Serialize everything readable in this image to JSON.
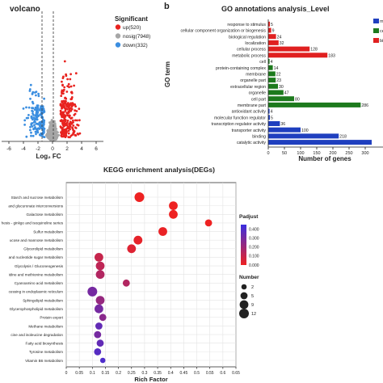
{
  "chart_data": [
    {
      "type": "scatter",
      "title": "volcano",
      "xlabel": "Log₂ FC",
      "ylabel": "",
      "xlim": [
        -7,
        7
      ],
      "x_ticks": [
        "-6",
        "-4",
        "-2",
        "0",
        "2",
        "4",
        "6"
      ],
      "thresholds": [
        -1,
        1
      ],
      "legend_title": "Significant",
      "legend_placement": "right",
      "series": [
        {
          "name": "up(520)",
          "color": "#e8231f"
        },
        {
          "name": "nosig(7948)",
          "color": "#a6a6a6"
        },
        {
          "name": "down(332)",
          "color": "#3b8ee0"
        }
      ]
    },
    {
      "type": "bar",
      "orientation": "horizontal",
      "panel_label": "b",
      "title": "GO annotations analysis_Level",
      "ylabel": "GO term",
      "xlabel": "Number of genes",
      "xlim": [
        0,
        320
      ],
      "x_ticks": [
        "0",
        "50",
        "100",
        "150",
        "200",
        "250",
        "300"
      ],
      "legend_placement": "right",
      "legend_entries": [
        {
          "label": "m",
          "color": "#1f3fbf"
        },
        {
          "label": "ce",
          "color": "#1d7a1d"
        },
        {
          "label": "bi",
          "color": "#e02020"
        }
      ],
      "categories": [
        "response to stimulus",
        "cellular component organization or biogenesis",
        "biological regulation",
        "localization",
        "cellular process",
        "metabolic process",
        "cell",
        "protein-containing complex",
        "membrane",
        "organelle part",
        "extracellular region",
        "organelle",
        "cell part",
        "membrane part",
        "antioxidant activity",
        "molecular function regulator",
        "transcription regulator activity",
        "transporter activity",
        "binding",
        "catalytic activity"
      ],
      "values": [
        5,
        9,
        24,
        32,
        128,
        183,
        4,
        14,
        22,
        23,
        30,
        47,
        80,
        286,
        4,
        5,
        36,
        100,
        218,
        320
      ],
      "value_labels": [
        "5",
        "9",
        "24",
        "32",
        "128",
        "183",
        "4",
        "14",
        "22",
        "23",
        "30",
        "47",
        "80",
        "286",
        "4",
        "5",
        "36",
        "100",
        "218",
        ""
      ],
      "colors": [
        "#e02020",
        "#e02020",
        "#e02020",
        "#e02020",
        "#e02020",
        "#e02020",
        "#1d7a1d",
        "#1d7a1d",
        "#1d7a1d",
        "#1d7a1d",
        "#1d7a1d",
        "#1d7a1d",
        "#1d7a1d",
        "#1d7a1d",
        "#1f3fbf",
        "#1f3fbf",
        "#1f3fbf",
        "#1f3fbf",
        "#1f3fbf",
        "#1f3fbf"
      ]
    },
    {
      "type": "scatter",
      "title": "KEGG enrichment analysis(DEGs)",
      "xlabel": "Rich Factor",
      "ylabel": "",
      "xlim": [
        0,
        0.65
      ],
      "x_ticks": [
        "0",
        "0.05",
        "0.1",
        "0.15",
        "0.2",
        "0.25",
        "0.3",
        "0.35",
        "0.4",
        "0.45",
        "0.5",
        "0.55",
        "0.6",
        "0.65"
      ],
      "grid": true,
      "categories": [
        "Starch and sucrose metabolism",
        "and glucuronate interconversions",
        "Galactose metabolism",
        "hesis - ginkgo and isoquinoline series",
        "Sulfur metabolism",
        "ucose and mannose metabolism",
        "Glycerolipid metabolism",
        "and nucleotide sugar metabolism",
        "Glycolysis / Gluconeogenesis",
        "idine and methionine metabolism",
        "Cyanoamino acid metabolism",
        "cessing in endoplasmic reticulum",
        "Sphingolipid metabolism",
        "Glycerophospholipid metabolism",
        "Protein export",
        "Methane metabolism",
        "cine and isoleucine degradation",
        "Fatty acid biosynthesis",
        "Tyrosine metabolism",
        "Vitamin B6 metabolism"
      ],
      "points": [
        {
          "x": 0.28,
          "size": 12,
          "padjust": 0.0
        },
        {
          "x": 0.41,
          "size": 9,
          "padjust": 0.0
        },
        {
          "x": 0.41,
          "size": 9,
          "padjust": 0.0
        },
        {
          "x": 0.545,
          "size": 5,
          "padjust": 0.0
        },
        {
          "x": 0.37,
          "size": 9,
          "padjust": 0.01
        },
        {
          "x": 0.275,
          "size": 9,
          "padjust": 0.02
        },
        {
          "x": 0.25,
          "size": 9,
          "padjust": 0.04
        },
        {
          "x": 0.125,
          "size": 9,
          "padjust": 0.1
        },
        {
          "x": 0.13,
          "size": 9,
          "padjust": 0.12
        },
        {
          "x": 0.13,
          "size": 9,
          "padjust": 0.15
        },
        {
          "x": 0.23,
          "size": 5,
          "padjust": 0.15
        },
        {
          "x": 0.1,
          "size": 12,
          "padjust": 0.3
        },
        {
          "x": 0.13,
          "size": 9,
          "padjust": 0.22
        },
        {
          "x": 0.125,
          "size": 9,
          "padjust": 0.3
        },
        {
          "x": 0.14,
          "size": 5,
          "padjust": 0.25
        },
        {
          "x": 0.125,
          "size": 5,
          "padjust": 0.35
        },
        {
          "x": 0.12,
          "size": 5,
          "padjust": 0.3
        },
        {
          "x": 0.13,
          "size": 5,
          "padjust": 0.35
        },
        {
          "x": 0.12,
          "size": 5,
          "padjust": 0.38
        },
        {
          "x": 0.14,
          "size": 2,
          "padjust": 0.4
        }
      ],
      "color_legend_title": "Padjust",
      "color_ticks": [
        "0.400",
        "0.300",
        "0.200",
        "0.100",
        "0.000"
      ],
      "color_range": [
        0,
        0.45
      ],
      "color_low": "#ee2222",
      "color_high": "#3a2ee0",
      "size_legend_title": "Number",
      "size_legend_values": [
        2,
        5,
        9,
        12
      ]
    }
  ]
}
